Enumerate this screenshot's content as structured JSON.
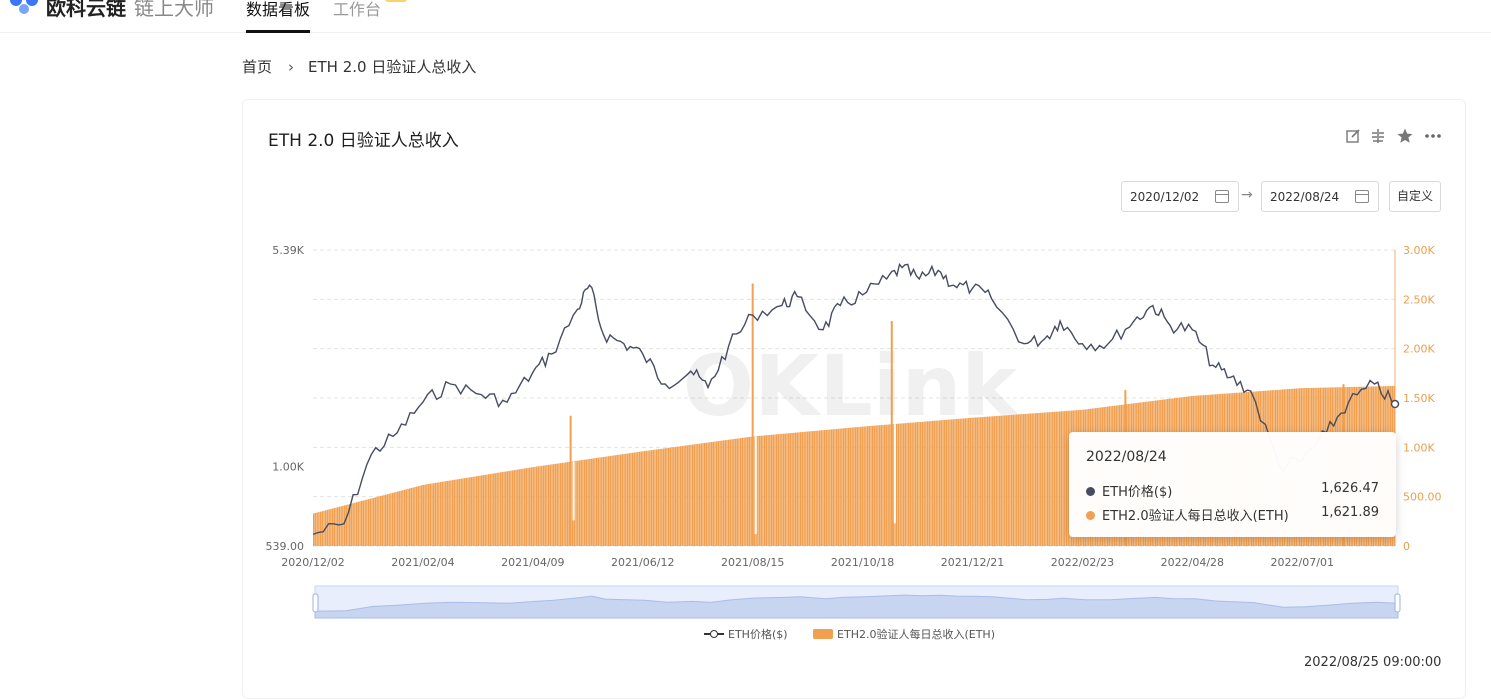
{
  "header": {
    "brand": "欧科云链",
    "brand_sub": "链上大师",
    "tabs": [
      {
        "label": "数据看板",
        "active": true
      },
      {
        "label": "工作台",
        "active": false
      }
    ]
  },
  "breadcrumb": {
    "home": "首页",
    "separator": "›",
    "current": "ETH 2.0 日验证人总收入"
  },
  "card": {
    "title": "ETH 2.0 日验证人总收入",
    "tools": [
      "edit-icon",
      "compare-icon",
      "star-icon",
      "more-icon"
    ],
    "date_start": "2020/12/02",
    "date_end": "2022/08/24",
    "custom_label": "自定义",
    "watermark": "OKLink",
    "updated": "2022/08/25 09:00:00"
  },
  "tooltip": {
    "date": "2022/08/24",
    "rows": [
      {
        "label": "ETH价格($)",
        "value": "1,626.47",
        "color": "#464d60"
      },
      {
        "label": "ETH2.0验证人每日总收入(ETH)",
        "value": "1,621.89",
        "color": "#f0a050"
      }
    ]
  },
  "legend": {
    "items": [
      "ETH价格($)",
      "ETH2.0验证人每日总收入(ETH)"
    ]
  },
  "chart_data": {
    "type": "bar+line",
    "x_ticks": [
      "2020/12/02",
      "2021/02/04",
      "2021/04/09",
      "2021/06/12",
      "2021/08/15",
      "2021/10/18",
      "2021/12/21",
      "2022/02/23",
      "2022/04/28",
      "2022/07/01"
    ],
    "y_left_ticks": [
      "539.00",
      "1.00K",
      "5.39K"
    ],
    "y_left_scale": "log",
    "y_left_range": [
      539,
      5390
    ],
    "y_right_ticks": [
      "0",
      "500.00",
      "1.00K",
      "1.50K",
      "2.00K",
      "2.50K",
      "3.00K"
    ],
    "y_right_range": [
      0,
      3000
    ],
    "grid": "horizontal dashed",
    "legend_position": "bottom-center",
    "series": [
      {
        "name": "ETH价格($)",
        "type": "line",
        "axis": "left",
        "color": "#464d60",
        "points": [
          [
            "2020-12-02",
            590
          ],
          [
            "2020-12-20",
            640
          ],
          [
            "2021-01-05",
            1100
          ],
          [
            "2021-01-20",
            1300
          ],
          [
            "2021-02-04",
            1650
          ],
          [
            "2021-02-20",
            1900
          ],
          [
            "2021-03-10",
            1750
          ],
          [
            "2021-03-25",
            1650
          ],
          [
            "2021-04-09",
            2080
          ],
          [
            "2021-04-20",
            2400
          ],
          [
            "2021-05-05",
            3400
          ],
          [
            "2021-05-12",
            4100
          ],
          [
            "2021-05-20",
            2800
          ],
          [
            "2021-06-01",
            2600
          ],
          [
            "2021-06-12",
            2400
          ],
          [
            "2021-06-25",
            1900
          ],
          [
            "2021-07-10",
            2100
          ],
          [
            "2021-07-20",
            1850
          ],
          [
            "2021-08-01",
            2550
          ],
          [
            "2021-08-15",
            3250
          ],
          [
            "2021-09-01",
            3500
          ],
          [
            "2021-09-10",
            3750
          ],
          [
            "2021-09-25",
            2900
          ],
          [
            "2021-10-05",
            3500
          ],
          [
            "2021-10-18",
            3800
          ],
          [
            "2021-11-01",
            4300
          ],
          [
            "2021-11-10",
            4700
          ],
          [
            "2021-11-20",
            4300
          ],
          [
            "2021-12-01",
            4600
          ],
          [
            "2021-12-10",
            4100
          ],
          [
            "2021-12-21",
            4000
          ],
          [
            "2022-01-01",
            3700
          ],
          [
            "2022-01-20",
            2600
          ],
          [
            "2022-02-01",
            2700
          ],
          [
            "2022-02-10",
            3100
          ],
          [
            "2022-02-23",
            2600
          ],
          [
            "2022-03-10",
            2600
          ],
          [
            "2022-03-25",
            3100
          ],
          [
            "2022-04-05",
            3500
          ],
          [
            "2022-04-15",
            3000
          ],
          [
            "2022-04-28",
            2900
          ],
          [
            "2022-05-10",
            2200
          ],
          [
            "2022-05-20",
            2000
          ],
          [
            "2022-06-01",
            1800
          ],
          [
            "2022-06-18",
            1000
          ],
          [
            "2022-07-01",
            1050
          ],
          [
            "2022-07-15",
            1300
          ],
          [
            "2022-07-28",
            1650
          ],
          [
            "2022-08-12",
            1900
          ],
          [
            "2022-08-24",
            1626.47
          ]
        ]
      },
      {
        "name": "ETH2.0验证人每日总收入(ETH)",
        "type": "bar",
        "axis": "right",
        "color": "#f0a050",
        "points": [
          [
            "2020-12-02",
            330
          ],
          [
            "2021-02-04",
            620
          ],
          [
            "2021-04-09",
            800
          ],
          [
            "2021-06-12",
            960
          ],
          [
            "2021-08-15",
            1110
          ],
          [
            "2021-10-18",
            1210
          ],
          [
            "2021-12-21",
            1300
          ],
          [
            "2022-02-23",
            1380
          ],
          [
            "2022-04-28",
            1520
          ],
          [
            "2022-07-01",
            1600
          ],
          [
            "2022-08-24",
            1621.89
          ]
        ],
        "spikes": [
          [
            "2021-05-01",
            1320
          ],
          [
            "2021-08-15",
            2660
          ],
          [
            "2021-11-04",
            2280
          ],
          [
            "2022-03-20",
            1580
          ],
          [
            "2022-07-25",
            1640
          ]
        ],
        "dips": [
          [
            "2021-05-01",
            260
          ],
          [
            "2021-08-15",
            120
          ],
          [
            "2021-11-04",
            230
          ]
        ]
      }
    ]
  }
}
